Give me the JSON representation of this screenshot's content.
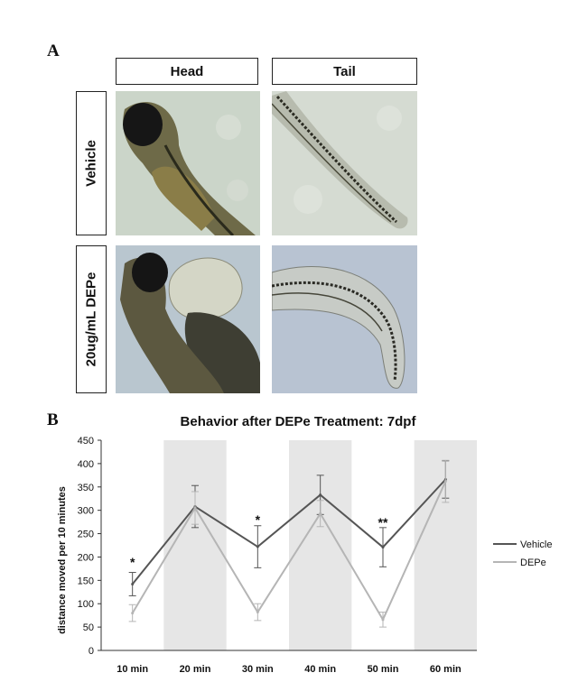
{
  "panel_a": {
    "letter": "A",
    "columns": [
      "Head",
      "Tail"
    ],
    "rows": [
      "Vehicle",
      "20ug/mL DEPe"
    ]
  },
  "panel_b": {
    "letter": "B"
  },
  "colors": {
    "vehicle": "#555555",
    "depe": "#b5b5b5",
    "band": "#e6e6e6"
  },
  "chart_data": {
    "type": "line",
    "title": "Behavior after DEPe Treatment: 7dpf",
    "ylabel": "distance moved per 10 minutes",
    "xlabel": "",
    "ylim": [
      0,
      450
    ],
    "yticks": [
      0,
      50,
      100,
      150,
      200,
      250,
      300,
      350,
      400,
      450
    ],
    "categories": [
      "10 min",
      "20 min",
      "30 min",
      "40 min",
      "50 min",
      "60 min"
    ],
    "series": [
      {
        "name": "Vehicle",
        "values": [
          142,
          308,
          222,
          333,
          221,
          366
        ],
        "errors": [
          25,
          45,
          45,
          42,
          42,
          40
        ]
      },
      {
        "name": "DEPe",
        "values": [
          80,
          305,
          82,
          293,
          66,
          362
        ],
        "errors": [
          18,
          35,
          18,
          28,
          16,
          45
        ]
      }
    ],
    "annotations": [
      {
        "category": "10 min",
        "text": "*",
        "value": 180
      },
      {
        "category": "30 min",
        "text": "*",
        "value": 270
      },
      {
        "category": "50 min",
        "text": "**",
        "value": 265
      }
    ],
    "legend_position": "right",
    "alternating_bands": true
  }
}
